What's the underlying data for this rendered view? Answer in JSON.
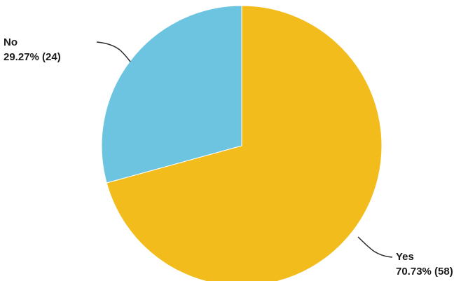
{
  "chart_data": {
    "type": "pie",
    "start_angle": "12 o'clock",
    "direction": "clockwise",
    "slices": [
      {
        "category": "Yes",
        "percent_label": "70.73% (58)",
        "percent": 70.73,
        "count": 58,
        "color": "#f2bd1c"
      },
      {
        "category": "No",
        "percent_label": "29.27% (24)",
        "percent": 29.27,
        "count": 24,
        "color": "#6cc4e0"
      }
    ]
  }
}
